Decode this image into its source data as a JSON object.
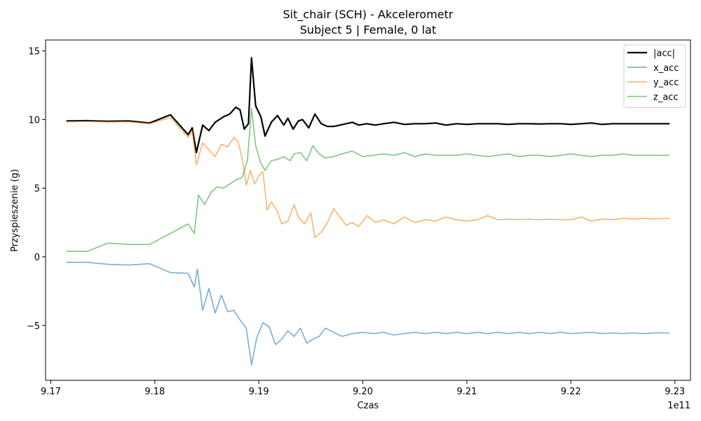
{
  "chart_data": {
    "type": "line",
    "title": "Sit_chair (SCH) - Akcelerometr",
    "subtitle": "Subject 5 | Female, 0 lat",
    "xlabel": "Czas",
    "ylabel": "Przyspieszenie (g)",
    "x_offset_label": "1e11",
    "xlim": [
      9.1695,
      9.2315
    ],
    "ylim": [
      -9.0,
      15.8
    ],
    "xticks": [
      9.17,
      9.18,
      9.19,
      9.2,
      9.21,
      9.22,
      9.23
    ],
    "xtick_labels": [
      "9.17",
      "9.18",
      "9.19",
      "9.20",
      "9.21",
      "9.22",
      "9.23"
    ],
    "yticks": [
      -5,
      0,
      5,
      10,
      15
    ],
    "ytick_labels": [
      "−5",
      "0",
      "5",
      "10",
      "15"
    ],
    "grid": false,
    "legend_position": "top-right",
    "series": [
      {
        "name": "|acc|",
        "color": "#000000",
        "width": 2.2,
        "opacity": 1,
        "points": [
          [
            9.1715,
            9.9
          ],
          [
            9.1735,
            9.92
          ],
          [
            9.1755,
            9.88
          ],
          [
            9.1775,
            9.9
          ],
          [
            9.1795,
            9.75
          ],
          [
            9.1815,
            10.35
          ],
          [
            9.1832,
            8.9
          ],
          [
            9.1836,
            9.4
          ],
          [
            9.184,
            7.6
          ],
          [
            9.1846,
            9.6
          ],
          [
            9.1852,
            9.2
          ],
          [
            9.1858,
            9.8
          ],
          [
            9.1866,
            10.2
          ],
          [
            9.1872,
            10.4
          ],
          [
            9.1878,
            10.9
          ],
          [
            9.1882,
            10.7
          ],
          [
            9.1886,
            9.3
          ],
          [
            9.189,
            9.7
          ],
          [
            9.1893,
            14.5
          ],
          [
            9.1897,
            11.0
          ],
          [
            9.1902,
            10.2
          ],
          [
            9.1906,
            8.8
          ],
          [
            9.1912,
            9.8
          ],
          [
            9.1918,
            10.3
          ],
          [
            9.1924,
            9.6
          ],
          [
            9.1928,
            10.1
          ],
          [
            9.1933,
            9.3
          ],
          [
            9.1938,
            9.9
          ],
          [
            9.1942,
            10.0
          ],
          [
            9.1948,
            9.4
          ],
          [
            9.1954,
            10.4
          ],
          [
            9.196,
            9.7
          ],
          [
            9.1966,
            9.5
          ],
          [
            9.1972,
            9.5
          ],
          [
            9.1978,
            9.6
          ],
          [
            9.1984,
            9.7
          ],
          [
            9.199,
            9.8
          ],
          [
            9.1996,
            9.6
          ],
          [
            9.2004,
            9.7
          ],
          [
            9.2012,
            9.6
          ],
          [
            9.202,
            9.7
          ],
          [
            9.203,
            9.8
          ],
          [
            9.204,
            9.65
          ],
          [
            9.205,
            9.7
          ],
          [
            9.206,
            9.7
          ],
          [
            9.207,
            9.75
          ],
          [
            9.208,
            9.6
          ],
          [
            9.209,
            9.7
          ],
          [
            9.21,
            9.65
          ],
          [
            9.211,
            9.7
          ],
          [
            9.212,
            9.7
          ],
          [
            9.213,
            9.7
          ],
          [
            9.214,
            9.65
          ],
          [
            9.215,
            9.7
          ],
          [
            9.216,
            9.7
          ],
          [
            9.217,
            9.68
          ],
          [
            9.218,
            9.7
          ],
          [
            9.219,
            9.7
          ],
          [
            9.22,
            9.65
          ],
          [
            9.221,
            9.7
          ],
          [
            9.222,
            9.75
          ],
          [
            9.223,
            9.65
          ],
          [
            9.224,
            9.7
          ],
          [
            9.225,
            9.7
          ],
          [
            9.226,
            9.7
          ],
          [
            9.227,
            9.7
          ],
          [
            9.228,
            9.7
          ],
          [
            9.2295,
            9.7
          ]
        ]
      },
      {
        "name": "x_acc",
        "color": "#1f77b4",
        "width": 1.6,
        "opacity": 0.6,
        "points": [
          [
            9.1715,
            -0.4
          ],
          [
            9.1735,
            -0.4
          ],
          [
            9.1755,
            -0.55
          ],
          [
            9.1775,
            -0.6
          ],
          [
            9.1795,
            -0.5
          ],
          [
            9.1815,
            -1.15
          ],
          [
            9.1832,
            -1.2
          ],
          [
            9.1838,
            -2.2
          ],
          [
            9.1841,
            -0.9
          ],
          [
            9.1846,
            -3.9
          ],
          [
            9.1852,
            -2.3
          ],
          [
            9.1858,
            -4.1
          ],
          [
            9.1864,
            -2.8
          ],
          [
            9.187,
            -4.0
          ],
          [
            9.1876,
            -3.9
          ],
          [
            9.1882,
            -4.6
          ],
          [
            9.1888,
            -5.2
          ],
          [
            9.1893,
            -7.9
          ],
          [
            9.1898,
            -5.9
          ],
          [
            9.1904,
            -4.8
          ],
          [
            9.191,
            -5.1
          ],
          [
            9.1916,
            -6.4
          ],
          [
            9.1922,
            -6.0
          ],
          [
            9.1928,
            -5.4
          ],
          [
            9.1934,
            -5.8
          ],
          [
            9.194,
            -5.2
          ],
          [
            9.1946,
            -6.3
          ],
          [
            9.1952,
            -6.0
          ],
          [
            9.1958,
            -5.8
          ],
          [
            9.1964,
            -5.2
          ],
          [
            9.1972,
            -5.5
          ],
          [
            9.198,
            -5.8
          ],
          [
            9.199,
            -5.6
          ],
          [
            9.2,
            -5.5
          ],
          [
            9.201,
            -5.6
          ],
          [
            9.202,
            -5.5
          ],
          [
            9.203,
            -5.7
          ],
          [
            9.204,
            -5.6
          ],
          [
            9.205,
            -5.5
          ],
          [
            9.206,
            -5.6
          ],
          [
            9.207,
            -5.5
          ],
          [
            9.208,
            -5.6
          ],
          [
            9.209,
            -5.5
          ],
          [
            9.21,
            -5.6
          ],
          [
            9.211,
            -5.5
          ],
          [
            9.212,
            -5.6
          ],
          [
            9.213,
            -5.5
          ],
          [
            9.214,
            -5.6
          ],
          [
            9.215,
            -5.5
          ],
          [
            9.216,
            -5.6
          ],
          [
            9.217,
            -5.5
          ],
          [
            9.218,
            -5.6
          ],
          [
            9.219,
            -5.5
          ],
          [
            9.22,
            -5.6
          ],
          [
            9.221,
            -5.55
          ],
          [
            9.222,
            -5.5
          ],
          [
            9.223,
            -5.6
          ],
          [
            9.224,
            -5.55
          ],
          [
            9.225,
            -5.6
          ],
          [
            9.226,
            -5.55
          ],
          [
            9.227,
            -5.6
          ],
          [
            9.228,
            -5.55
          ],
          [
            9.2295,
            -5.55
          ]
        ]
      },
      {
        "name": "y_acc",
        "color": "#ff7f0e",
        "width": 1.6,
        "opacity": 0.6,
        "points": [
          [
            9.1715,
            9.85
          ],
          [
            9.1735,
            9.87
          ],
          [
            9.1755,
            9.83
          ],
          [
            9.1775,
            9.85
          ],
          [
            9.1795,
            9.7
          ],
          [
            9.1815,
            10.15
          ],
          [
            9.1832,
            8.7
          ],
          [
            9.1836,
            9.2
          ],
          [
            9.184,
            6.7
          ],
          [
            9.1846,
            8.3
          ],
          [
            9.1852,
            7.8
          ],
          [
            9.1858,
            7.3
          ],
          [
            9.1864,
            8.2
          ],
          [
            9.187,
            8.0
          ],
          [
            9.1876,
            8.7
          ],
          [
            9.188,
            8.4
          ],
          [
            9.1884,
            7.2
          ],
          [
            9.1888,
            5.2
          ],
          [
            9.1892,
            6.3
          ],
          [
            9.1896,
            5.3
          ],
          [
            9.19,
            5.9
          ],
          [
            9.1904,
            6.2
          ],
          [
            9.1908,
            3.4
          ],
          [
            9.1912,
            4.0
          ],
          [
            9.1918,
            3.3
          ],
          [
            9.1922,
            2.4
          ],
          [
            9.1928,
            2.6
          ],
          [
            9.1934,
            3.8
          ],
          [
            9.1938,
            2.9
          ],
          [
            9.1944,
            2.4
          ],
          [
            9.195,
            3.2
          ],
          [
            9.1954,
            1.4
          ],
          [
            9.196,
            1.8
          ],
          [
            9.1966,
            2.5
          ],
          [
            9.1972,
            3.5
          ],
          [
            9.1978,
            2.9
          ],
          [
            9.1984,
            2.3
          ],
          [
            9.199,
            2.5
          ],
          [
            9.1996,
            2.2
          ],
          [
            9.2004,
            3.0
          ],
          [
            9.2012,
            2.5
          ],
          [
            9.202,
            2.7
          ],
          [
            9.203,
            2.4
          ],
          [
            9.204,
            2.9
          ],
          [
            9.205,
            2.5
          ],
          [
            9.206,
            2.7
          ],
          [
            9.207,
            2.6
          ],
          [
            9.208,
            2.9
          ],
          [
            9.209,
            2.7
          ],
          [
            9.21,
            2.6
          ],
          [
            9.211,
            2.7
          ],
          [
            9.212,
            3.0
          ],
          [
            9.213,
            2.7
          ],
          [
            9.214,
            2.75
          ],
          [
            9.215,
            2.7
          ],
          [
            9.216,
            2.75
          ],
          [
            9.217,
            2.7
          ],
          [
            9.218,
            2.75
          ],
          [
            9.219,
            2.7
          ],
          [
            9.22,
            2.7
          ],
          [
            9.221,
            2.9
          ],
          [
            9.222,
            2.6
          ],
          [
            9.223,
            2.75
          ],
          [
            9.224,
            2.7
          ],
          [
            9.225,
            2.8
          ],
          [
            9.226,
            2.75
          ],
          [
            9.227,
            2.8
          ],
          [
            9.228,
            2.75
          ],
          [
            9.2295,
            2.8
          ]
        ]
      },
      {
        "name": "z_acc",
        "color": "#2ca02c",
        "width": 1.6,
        "opacity": 0.6,
        "points": [
          [
            9.1715,
            0.4
          ],
          [
            9.1735,
            0.4
          ],
          [
            9.1755,
            1.0
          ],
          [
            9.1775,
            0.9
          ],
          [
            9.1795,
            0.9
          ],
          [
            9.1815,
            1.7
          ],
          [
            9.1832,
            2.4
          ],
          [
            9.1838,
            1.7
          ],
          [
            9.1842,
            4.5
          ],
          [
            9.1848,
            3.8
          ],
          [
            9.1854,
            4.7
          ],
          [
            9.186,
            5.1
          ],
          [
            9.1866,
            5.0
          ],
          [
            9.1872,
            5.3
          ],
          [
            9.1878,
            5.6
          ],
          [
            9.1884,
            5.8
          ],
          [
            9.1889,
            7.0
          ],
          [
            9.1893,
            10.8
          ],
          [
            9.1897,
            8.1
          ],
          [
            9.1902,
            6.8
          ],
          [
            9.1906,
            6.3
          ],
          [
            9.1912,
            7.0
          ],
          [
            9.1918,
            7.1
          ],
          [
            9.1924,
            7.3
          ],
          [
            9.193,
            7.0
          ],
          [
            9.1934,
            7.5
          ],
          [
            9.194,
            7.6
          ],
          [
            9.1946,
            7.0
          ],
          [
            9.1952,
            8.1
          ],
          [
            9.1958,
            7.5
          ],
          [
            9.1964,
            7.2
          ],
          [
            9.1972,
            7.3
          ],
          [
            9.198,
            7.5
          ],
          [
            9.199,
            7.7
          ],
          [
            9.2,
            7.3
          ],
          [
            9.201,
            7.4
          ],
          [
            9.202,
            7.5
          ],
          [
            9.203,
            7.4
          ],
          [
            9.204,
            7.6
          ],
          [
            9.205,
            7.3
          ],
          [
            9.206,
            7.5
          ],
          [
            9.207,
            7.4
          ],
          [
            9.208,
            7.4
          ],
          [
            9.209,
            7.4
          ],
          [
            9.21,
            7.5
          ],
          [
            9.211,
            7.4
          ],
          [
            9.212,
            7.3
          ],
          [
            9.213,
            7.4
          ],
          [
            9.214,
            7.5
          ],
          [
            9.215,
            7.3
          ],
          [
            9.216,
            7.4
          ],
          [
            9.217,
            7.4
          ],
          [
            9.218,
            7.3
          ],
          [
            9.219,
            7.4
          ],
          [
            9.22,
            7.5
          ],
          [
            9.221,
            7.4
          ],
          [
            9.222,
            7.3
          ],
          [
            9.223,
            7.4
          ],
          [
            9.224,
            7.4
          ],
          [
            9.225,
            7.5
          ],
          [
            9.226,
            7.4
          ],
          [
            9.227,
            7.4
          ],
          [
            9.228,
            7.4
          ],
          [
            9.2295,
            7.4
          ]
        ]
      }
    ]
  }
}
